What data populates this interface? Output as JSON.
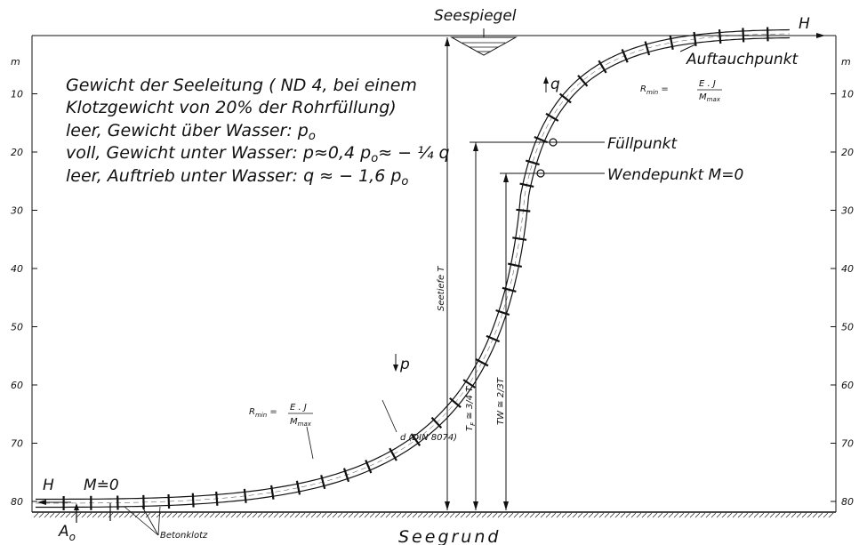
{
  "labels": {
    "seespiegel": "Seespiegel",
    "seegrund": "Seegrund",
    "h_left": "H",
    "h_right": "H",
    "m0": "M≐0",
    "a0": "A",
    "a0_sub": "o",
    "betonklotz": "Betonklotz",
    "auftauchpunkt": "Auftauchpunkt",
    "fuellpunkt": "Füllpunkt",
    "wendepunkt": "Wendepunkt  M=0",
    "seetiefe": "Seetiefe T",
    "tf": "T",
    "tf_sub": "F",
    "tf_rest": " ≅ 3/4 T",
    "tw": "TW ≅ 2/3T",
    "d_din": "d (DIN 8074)",
    "p": "p",
    "q": "q",
    "rmin_label": "R",
    "rmin_sub": "min",
    "rmin_num": "E . J",
    "rmin_den": "M",
    "rmin_den_sub": "max",
    "unit_left": "m",
    "unit_right": "m"
  },
  "legend": {
    "line1": "Gewicht der Seeleitung ( ND 4, bei einem",
    "line2": "Klotzgewicht von 20% der Rohrfüllung)",
    "line3": "leer, Gewicht über Wasser: p",
    "line3_sub": "o",
    "line4": "voll, Gewicht unter Wasser: p≈0,4 p",
    "line4_sub": "o",
    "line4_rest": "≈ − ¼ q",
    "line5": "leer, Auftrieb unter Wasser: q ≈ − 1,6 p",
    "line5_sub": "o"
  },
  "depth_ticks": [
    "10",
    "20",
    "30",
    "40",
    "50",
    "60",
    "70",
    "80"
  ]
}
